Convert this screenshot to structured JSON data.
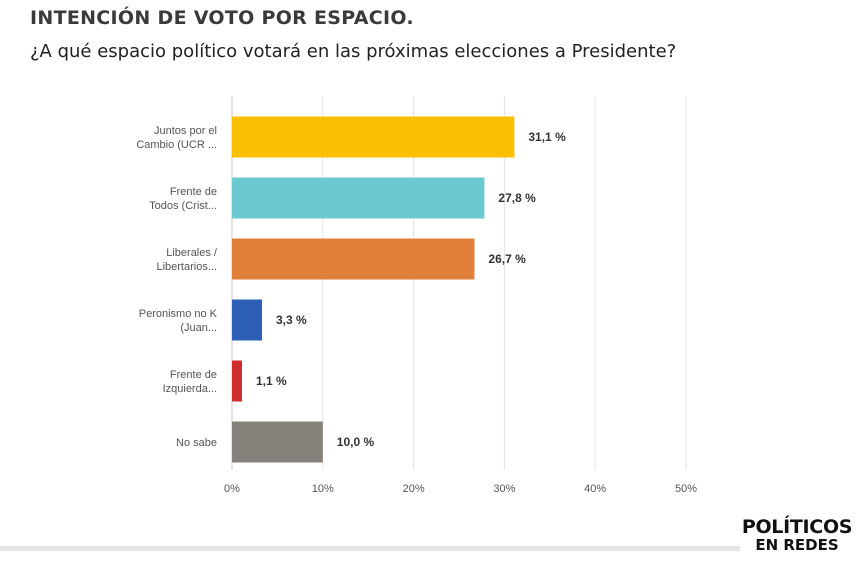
{
  "header": {
    "title": "INTENCIÓN DE VOTO POR ESPACIO.",
    "subtitle": "¿A qué espacio político votará en las próximas elecciones a Presidente?"
  },
  "chart_data": {
    "type": "bar",
    "orientation": "horizontal",
    "categories": [
      [
        "Juntos por el",
        "Cambio (UCR ..."
      ],
      [
        "Frente de",
        "Todos (Crist..."
      ],
      [
        "Liberales /",
        "Libertarios..."
      ],
      [
        "Peronismo no K",
        "(Juan..."
      ],
      [
        "Frente de",
        "Izquierda..."
      ],
      [
        "No sabe"
      ]
    ],
    "values": [
      31.1,
      27.8,
      26.7,
      3.3,
      1.1,
      10.0
    ],
    "value_labels": [
      "31,1 %",
      "27,8 %",
      "26,7 %",
      "3,3 %",
      "1,1 %",
      "10,0 %"
    ],
    "colors": [
      "#f8c000",
      "#6cc9cf",
      "#e0803a",
      "#2d5fb8",
      "#cf2e2e",
      "#86817a"
    ],
    "xlim": [
      0,
      50
    ],
    "x_ticks": [
      0,
      10,
      20,
      30,
      40,
      50
    ],
    "x_tick_labels": [
      "0%",
      "10%",
      "20%",
      "30%",
      "40%",
      "50%"
    ],
    "grid": true
  },
  "logo": {
    "top": "POLÍTICOS",
    "bottom": "EN REDES"
  }
}
